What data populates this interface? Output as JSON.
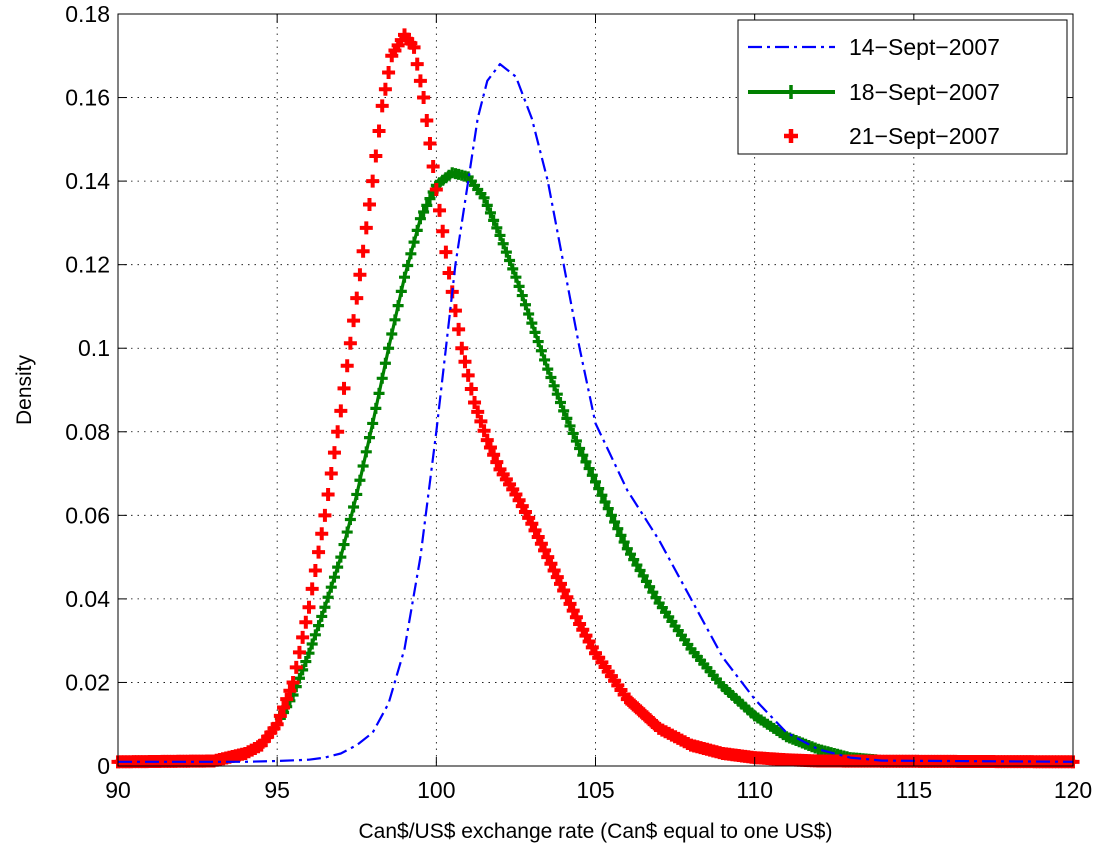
{
  "chart_data": {
    "type": "line",
    "title": "",
    "xlabel": "Can$/US$ exchange rate (Can$ equal to one US$)",
    "ylabel": "Density",
    "xlim": [
      90,
      120
    ],
    "ylim": [
      0,
      0.18
    ],
    "xticks": [
      90,
      95,
      100,
      105,
      110,
      115,
      120
    ],
    "xtick_labels": [
      "90",
      "95",
      "100",
      "105",
      "110",
      "115",
      "120"
    ],
    "yticks": [
      0,
      0.02,
      0.04,
      0.06,
      0.08,
      0.1,
      0.12,
      0.14,
      0.16,
      0.18
    ],
    "ytick_labels": [
      "0",
      "0.02",
      "0.04",
      "0.06",
      "0.08",
      "0.1",
      "0.12",
      "0.14",
      "0.16",
      "0.18"
    ],
    "grid": true,
    "legend_position": "top-right",
    "series": [
      {
        "name": "14−Sept−2007",
        "color": "#0000ff",
        "style": "dash-dot",
        "x": [
          90,
          94,
          95,
          96,
          96.5,
          97,
          97.5,
          98,
          98.5,
          99,
          99.5,
          100,
          100.3,
          100.6,
          101,
          101.3,
          101.6,
          102,
          102.5,
          103,
          103.5,
          104,
          104.5,
          105,
          105.5,
          106,
          107,
          108,
          109,
          110,
          111,
          112,
          113,
          114,
          120
        ],
        "y": [
          0.001,
          0.001,
          0.0012,
          0.0015,
          0.002,
          0.003,
          0.005,
          0.008,
          0.015,
          0.028,
          0.05,
          0.08,
          0.1,
          0.12,
          0.14,
          0.155,
          0.164,
          0.168,
          0.165,
          0.155,
          0.14,
          0.12,
          0.1,
          0.082,
          0.074,
          0.066,
          0.054,
          0.04,
          0.026,
          0.016,
          0.008,
          0.004,
          0.002,
          0.0013,
          0.001
        ]
      },
      {
        "name": "18−Sept−2007",
        "color": "#008000",
        "style": "solid-plus",
        "x": [
          90,
          93,
          94,
          94.5,
          95,
          95.5,
          96,
          96.5,
          97,
          97.5,
          98,
          98.5,
          99,
          99.5,
          100,
          100.5,
          101,
          101.5,
          102,
          102.5,
          103,
          103.5,
          104,
          104.5,
          105,
          106,
          107,
          108,
          109,
          110,
          111,
          112,
          113,
          113.8,
          120
        ],
        "y": [
          0.001,
          0.0012,
          0.003,
          0.005,
          0.01,
          0.017,
          0.027,
          0.038,
          0.05,
          0.065,
          0.082,
          0.1,
          0.117,
          0.131,
          0.139,
          0.142,
          0.141,
          0.136,
          0.127,
          0.117,
          0.106,
          0.095,
          0.085,
          0.076,
          0.068,
          0.052,
          0.039,
          0.028,
          0.019,
          0.012,
          0.007,
          0.004,
          0.002,
          0.0015,
          0.001
        ]
      },
      {
        "name": "21−Sept−2007",
        "color": "#ff0000",
        "style": "plus-markers",
        "x": [
          90,
          93,
          94,
          94.5,
          95,
          95.5,
          96,
          96.5,
          97,
          97.5,
          98,
          98.3,
          98.6,
          99,
          99.3,
          99.6,
          100,
          100.4,
          100.8,
          101.2,
          101.6,
          102,
          102.5,
          103,
          103.5,
          104,
          104.5,
          105,
          106,
          107,
          108,
          109,
          110,
          111,
          112,
          120
        ],
        "y": [
          0.001,
          0.0012,
          0.003,
          0.005,
          0.01,
          0.02,
          0.038,
          0.06,
          0.085,
          0.112,
          0.14,
          0.158,
          0.17,
          0.175,
          0.172,
          0.16,
          0.138,
          0.118,
          0.1,
          0.087,
          0.078,
          0.071,
          0.065,
          0.058,
          0.05,
          0.042,
          0.034,
          0.027,
          0.016,
          0.009,
          0.005,
          0.003,
          0.002,
          0.0015,
          0.0012,
          0.001
        ]
      }
    ]
  }
}
